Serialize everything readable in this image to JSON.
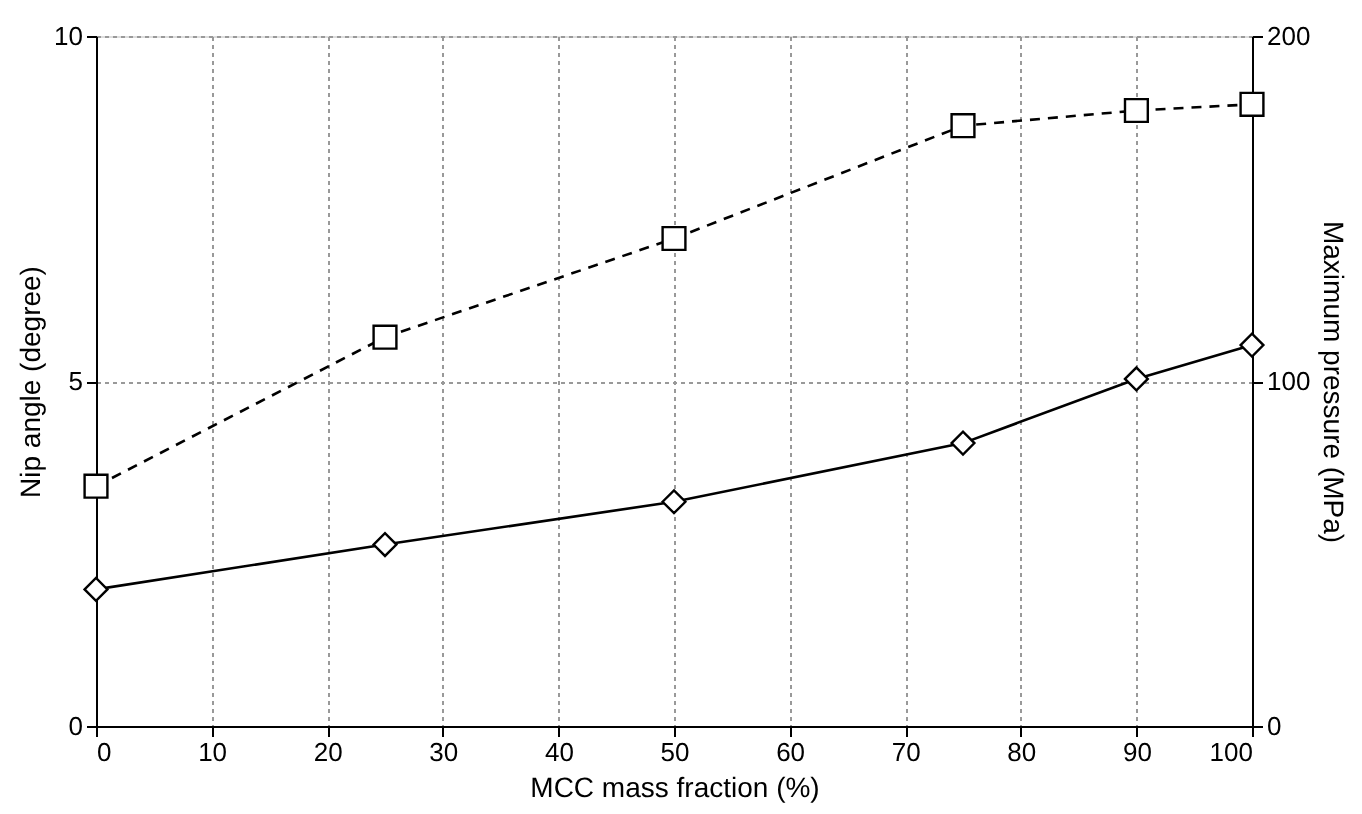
{
  "chart_data": {
    "type": "line",
    "xlabel": "MCC mass fraction (%)",
    "ylabel": "Nip angle (degree)",
    "y2label": "Maximum pressure (MPa)",
    "x": [
      0,
      25,
      50,
      75,
      90,
      100
    ],
    "xlim": [
      0,
      100
    ],
    "xticks": [
      0,
      10,
      20,
      30,
      40,
      50,
      60,
      70,
      80,
      90,
      100
    ],
    "ylim": [
      0,
      10
    ],
    "yticks": [
      0,
      5,
      10
    ],
    "y2lim": [
      0,
      200
    ],
    "y2ticks": [
      0,
      100,
      200
    ],
    "grid": true,
    "series": [
      {
        "color": "#000000",
        "values": [
          1.98,
          2.63,
          3.25,
          4.1,
          5.03,
          5.52
        ],
        "marker": "diamond",
        "line_style": "solid"
      },
      {
        "color": "#000000",
        "values": [
          69.5,
          112.7,
          141.3,
          174,
          178.4,
          180.2
        ],
        "marker": "square",
        "line_style": "dashed",
        "axis": "y2"
      }
    ]
  }
}
